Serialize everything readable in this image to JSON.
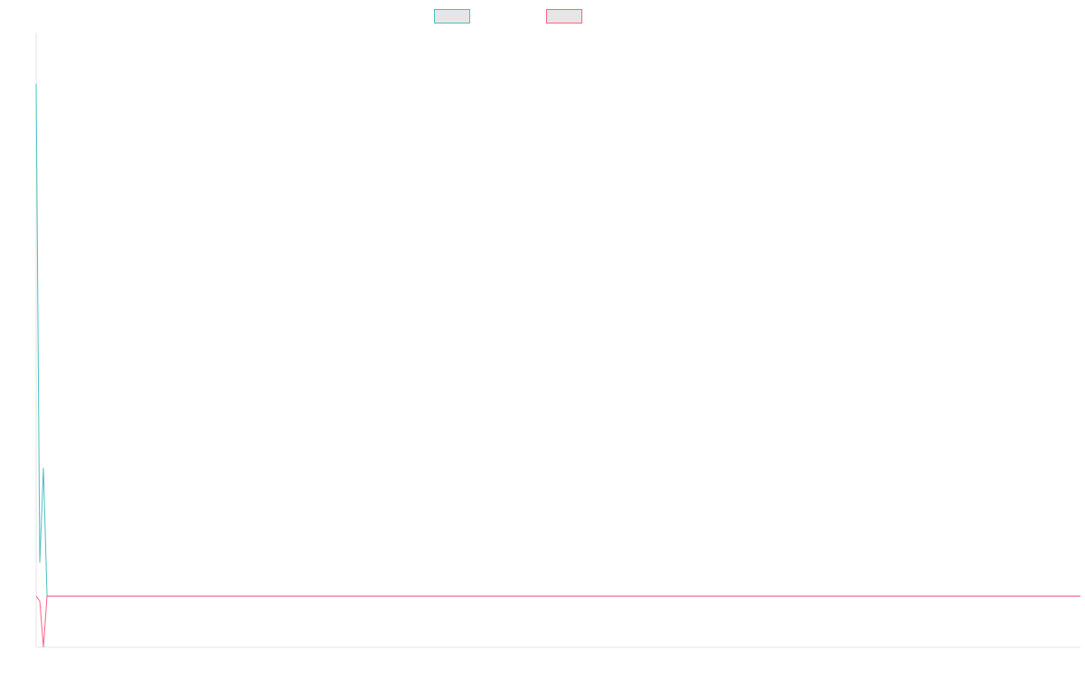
{
  "chart_data": {
    "type": "line",
    "title": "",
    "xlabel": "",
    "ylabel": "",
    "grid": false,
    "legend_position": "top-center",
    "x": [
      0,
      1,
      2,
      3,
      4,
      5,
      10,
      20,
      50,
      100,
      150,
      200,
      250,
      288
    ],
    "xlim": [
      0,
      288
    ],
    "ylim": [
      -100,
      1100
    ],
    "series": [
      {
        "name": "",
        "color": "#4bc0c0",
        "fill": "#e6e6e6",
        "values": [
          1000,
          65,
          250,
          0,
          0,
          0,
          0,
          0,
          0,
          0,
          0,
          0,
          0,
          0
        ]
      },
      {
        "name": "",
        "color": "#ff6384",
        "fill": "#e6e6e6",
        "values": [
          0,
          -10,
          -100,
          0,
          0,
          0,
          0,
          0,
          0,
          0,
          0,
          0,
          0,
          0
        ]
      }
    ]
  }
}
